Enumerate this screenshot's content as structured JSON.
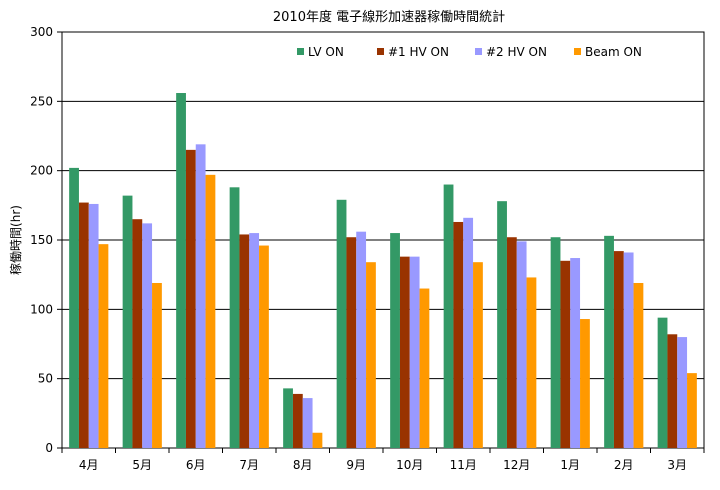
{
  "chart_data": {
    "type": "bar",
    "title": "2010年度 電子線形加速器稼働時間統計",
    "xlabel": "",
    "ylabel": "稼働時間(hr)",
    "ylim": [
      0,
      300
    ],
    "yticks": [
      0,
      50,
      100,
      150,
      200,
      250,
      300
    ],
    "grid": true,
    "legend_position": "top-right",
    "categories": [
      "4月",
      "5月",
      "6月",
      "7月",
      "8月",
      "9月",
      "10月",
      "11月",
      "12月",
      "1月",
      "2月",
      "3月"
    ],
    "series": [
      {
        "name": "LV ON",
        "color": "#339966",
        "values": [
          202,
          182,
          256,
          188,
          43,
          179,
          155,
          190,
          178,
          152,
          153,
          94
        ]
      },
      {
        "name": "#1 HV ON",
        "color": "#993300",
        "values": [
          177,
          165,
          215,
          154,
          39,
          152,
          138,
          163,
          152,
          135,
          142,
          82
        ]
      },
      {
        "name": "#2 HV ON",
        "color": "#9999ff",
        "values": [
          176,
          162,
          219,
          155,
          36,
          156,
          138,
          166,
          149,
          137,
          141,
          80
        ]
      },
      {
        "name": "Beam ON",
        "color": "#ff9900",
        "values": [
          147,
          119,
          197,
          146,
          11,
          134,
          115,
          134,
          123,
          93,
          119,
          54
        ]
      }
    ]
  }
}
